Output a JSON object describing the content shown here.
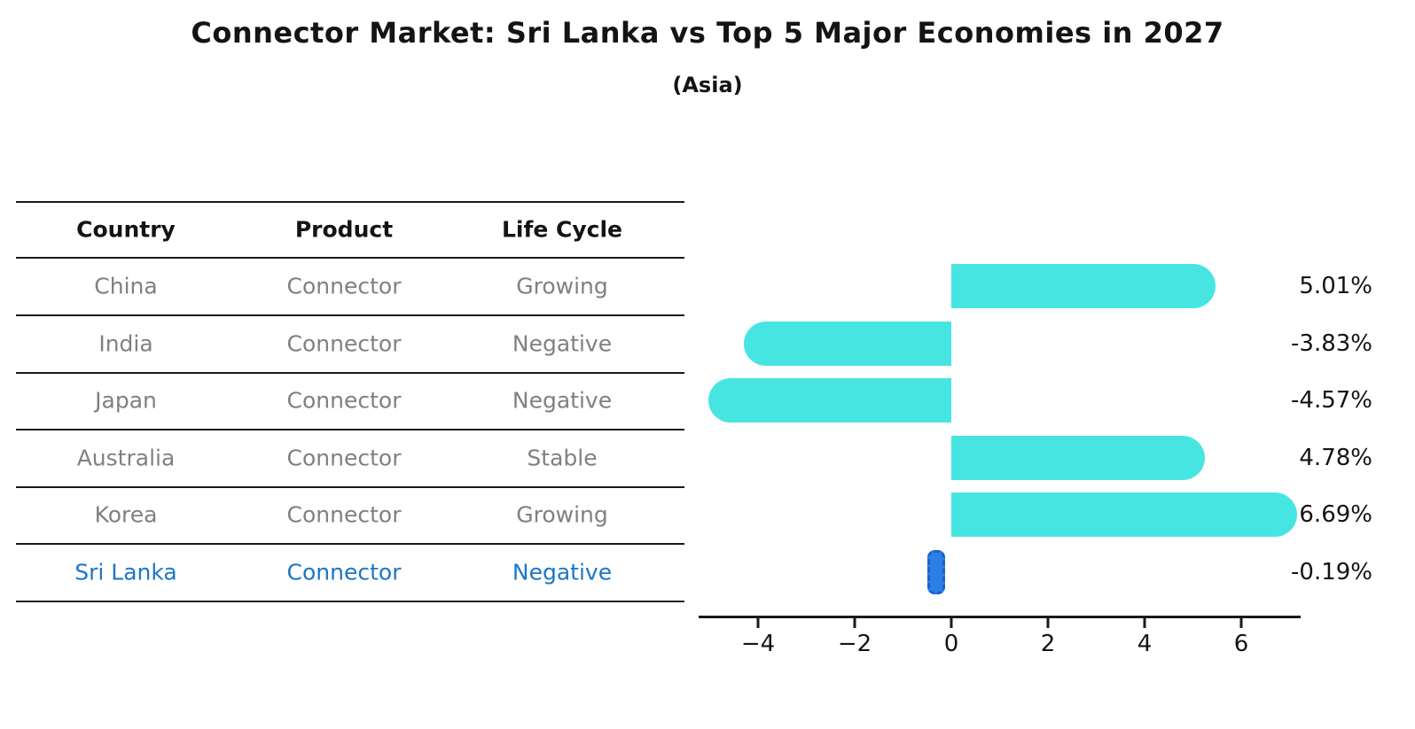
{
  "title": "Connector Market: Sri Lanka vs Top 5 Major Economies in 2027",
  "subtitle": "(Asia)",
  "table": {
    "headers": [
      "Country",
      "Product",
      "Life Cycle"
    ],
    "rows": [
      {
        "country": "China",
        "product": "Connector",
        "life_cycle": "Growing",
        "highlight": false
      },
      {
        "country": "India",
        "product": "Connector",
        "life_cycle": "Negative",
        "highlight": false
      },
      {
        "country": "Japan",
        "product": "Connector",
        "life_cycle": "Negative",
        "highlight": false
      },
      {
        "country": "Australia",
        "product": "Connector",
        "life_cycle": "Stable",
        "highlight": false
      },
      {
        "country": "Korea",
        "product": "Connector",
        "life_cycle": "Growing",
        "highlight": false
      },
      {
        "country": "Sri Lanka",
        "product": "Connector",
        "life_cycle": "Negative",
        "highlight": true
      }
    ]
  },
  "chart_data": {
    "type": "bar",
    "orientation": "horizontal",
    "title": "Connector Market: Sri Lanka vs Top 5 Major Economies in 2027",
    "subtitle": "(Asia)",
    "categories": [
      "China",
      "India",
      "Japan",
      "Australia",
      "Korea",
      "Sri Lanka"
    ],
    "values": [
      5.01,
      -3.83,
      -4.57,
      4.78,
      6.69,
      -0.19
    ],
    "value_labels": [
      "5.01%",
      "-3.83%",
      "-4.57%",
      "4.78%",
      "6.69%",
      "-0.19%"
    ],
    "x_ticks": [
      -4,
      -2,
      0,
      2,
      4,
      6
    ],
    "x_tick_labels": [
      "−4",
      "−2",
      "0",
      "2",
      "4",
      "6"
    ],
    "xlim": [
      -5.2,
      7.2
    ],
    "grid": false,
    "legend": "none",
    "highlight_index": 5
  },
  "colors": {
    "bar": "#47E5E1",
    "highlight_bar_fill": "#2B80E3",
    "highlight_bar_border": "#1E5FD0",
    "highlight_text": "#1C76C5",
    "row_text": "#808080",
    "heading_text": "#141414",
    "line": "#1a1a1a"
  }
}
